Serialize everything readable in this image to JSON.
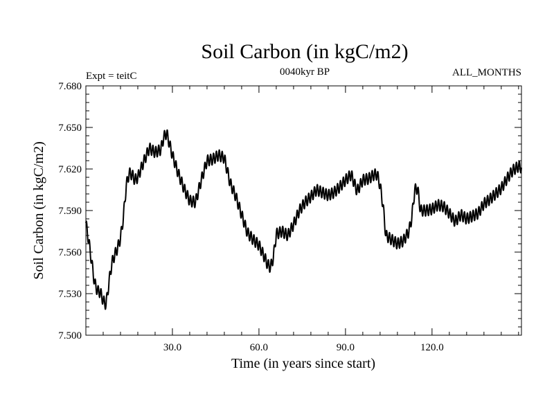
{
  "chart_data": {
    "type": "line",
    "title": "Soil Carbon (in kgC/m2)",
    "subtitle_left": "Expt = teitC",
    "subtitle_center": "0040kyr BP",
    "subtitle_right": "ALL_MONTHS",
    "xlabel": "Time (in years since start)",
    "ylabel": "Soil Carbon (in kgC/m2)",
    "xlim": [
      0,
      151
    ],
    "ylim": [
      7.5,
      7.68
    ],
    "x_ticks": [
      30,
      60,
      90,
      120
    ],
    "x_tick_labels": [
      "30.0",
      "60.0",
      "90.0",
      "120.0"
    ],
    "y_ticks": [
      7.5,
      7.53,
      7.56,
      7.59,
      7.62,
      7.65,
      7.68
    ],
    "y_tick_labels": [
      "7.500",
      "7.530",
      "7.560",
      "7.590",
      "7.620",
      "7.650",
      "7.680"
    ],
    "grid": false,
    "seasonal_amplitude": 0.004,
    "trend": {
      "x": [
        0,
        1,
        2,
        3,
        4,
        5,
        6,
        7,
        8,
        9,
        10,
        11,
        12,
        13,
        14,
        15,
        16,
        17,
        18,
        20,
        22,
        24,
        26,
        27,
        28,
        30,
        32,
        34,
        36,
        38,
        40,
        42,
        44,
        46,
        48,
        50,
        52,
        54,
        56,
        58,
        60,
        62,
        63,
        64,
        65,
        66,
        68,
        70,
        72,
        74,
        76,
        78,
        80,
        82,
        84,
        86,
        88,
        90,
        92,
        94,
        96,
        98,
        100,
        101,
        102,
        103,
        104,
        106,
        108,
        110,
        112,
        113,
        114,
        115,
        116,
        118,
        120,
        122,
        124,
        126,
        128,
        130,
        132,
        134,
        136,
        138,
        140,
        142,
        144,
        146,
        148,
        150,
        151
      ],
      "y": [
        7.581,
        7.568,
        7.553,
        7.538,
        7.532,
        7.531,
        7.525,
        7.522,
        7.538,
        7.552,
        7.558,
        7.563,
        7.57,
        7.585,
        7.608,
        7.617,
        7.616,
        7.612,
        7.614,
        7.625,
        7.635,
        7.632,
        7.634,
        7.643,
        7.646,
        7.63,
        7.617,
        7.606,
        7.597,
        7.596,
        7.612,
        7.626,
        7.627,
        7.63,
        7.628,
        7.61,
        7.6,
        7.587,
        7.574,
        7.569,
        7.565,
        7.556,
        7.551,
        7.549,
        7.556,
        7.573,
        7.575,
        7.572,
        7.58,
        7.59,
        7.596,
        7.6,
        7.605,
        7.603,
        7.601,
        7.603,
        7.607,
        7.612,
        7.616,
        7.604,
        7.612,
        7.613,
        7.616,
        7.616,
        7.608,
        7.594,
        7.572,
        7.569,
        7.566,
        7.568,
        7.575,
        7.585,
        7.605,
        7.606,
        7.59,
        7.59,
        7.591,
        7.594,
        7.593,
        7.588,
        7.582,
        7.587,
        7.584,
        7.586,
        7.588,
        7.595,
        7.598,
        7.602,
        7.606,
        7.613,
        7.619,
        7.622,
        7.621
      ]
    }
  }
}
